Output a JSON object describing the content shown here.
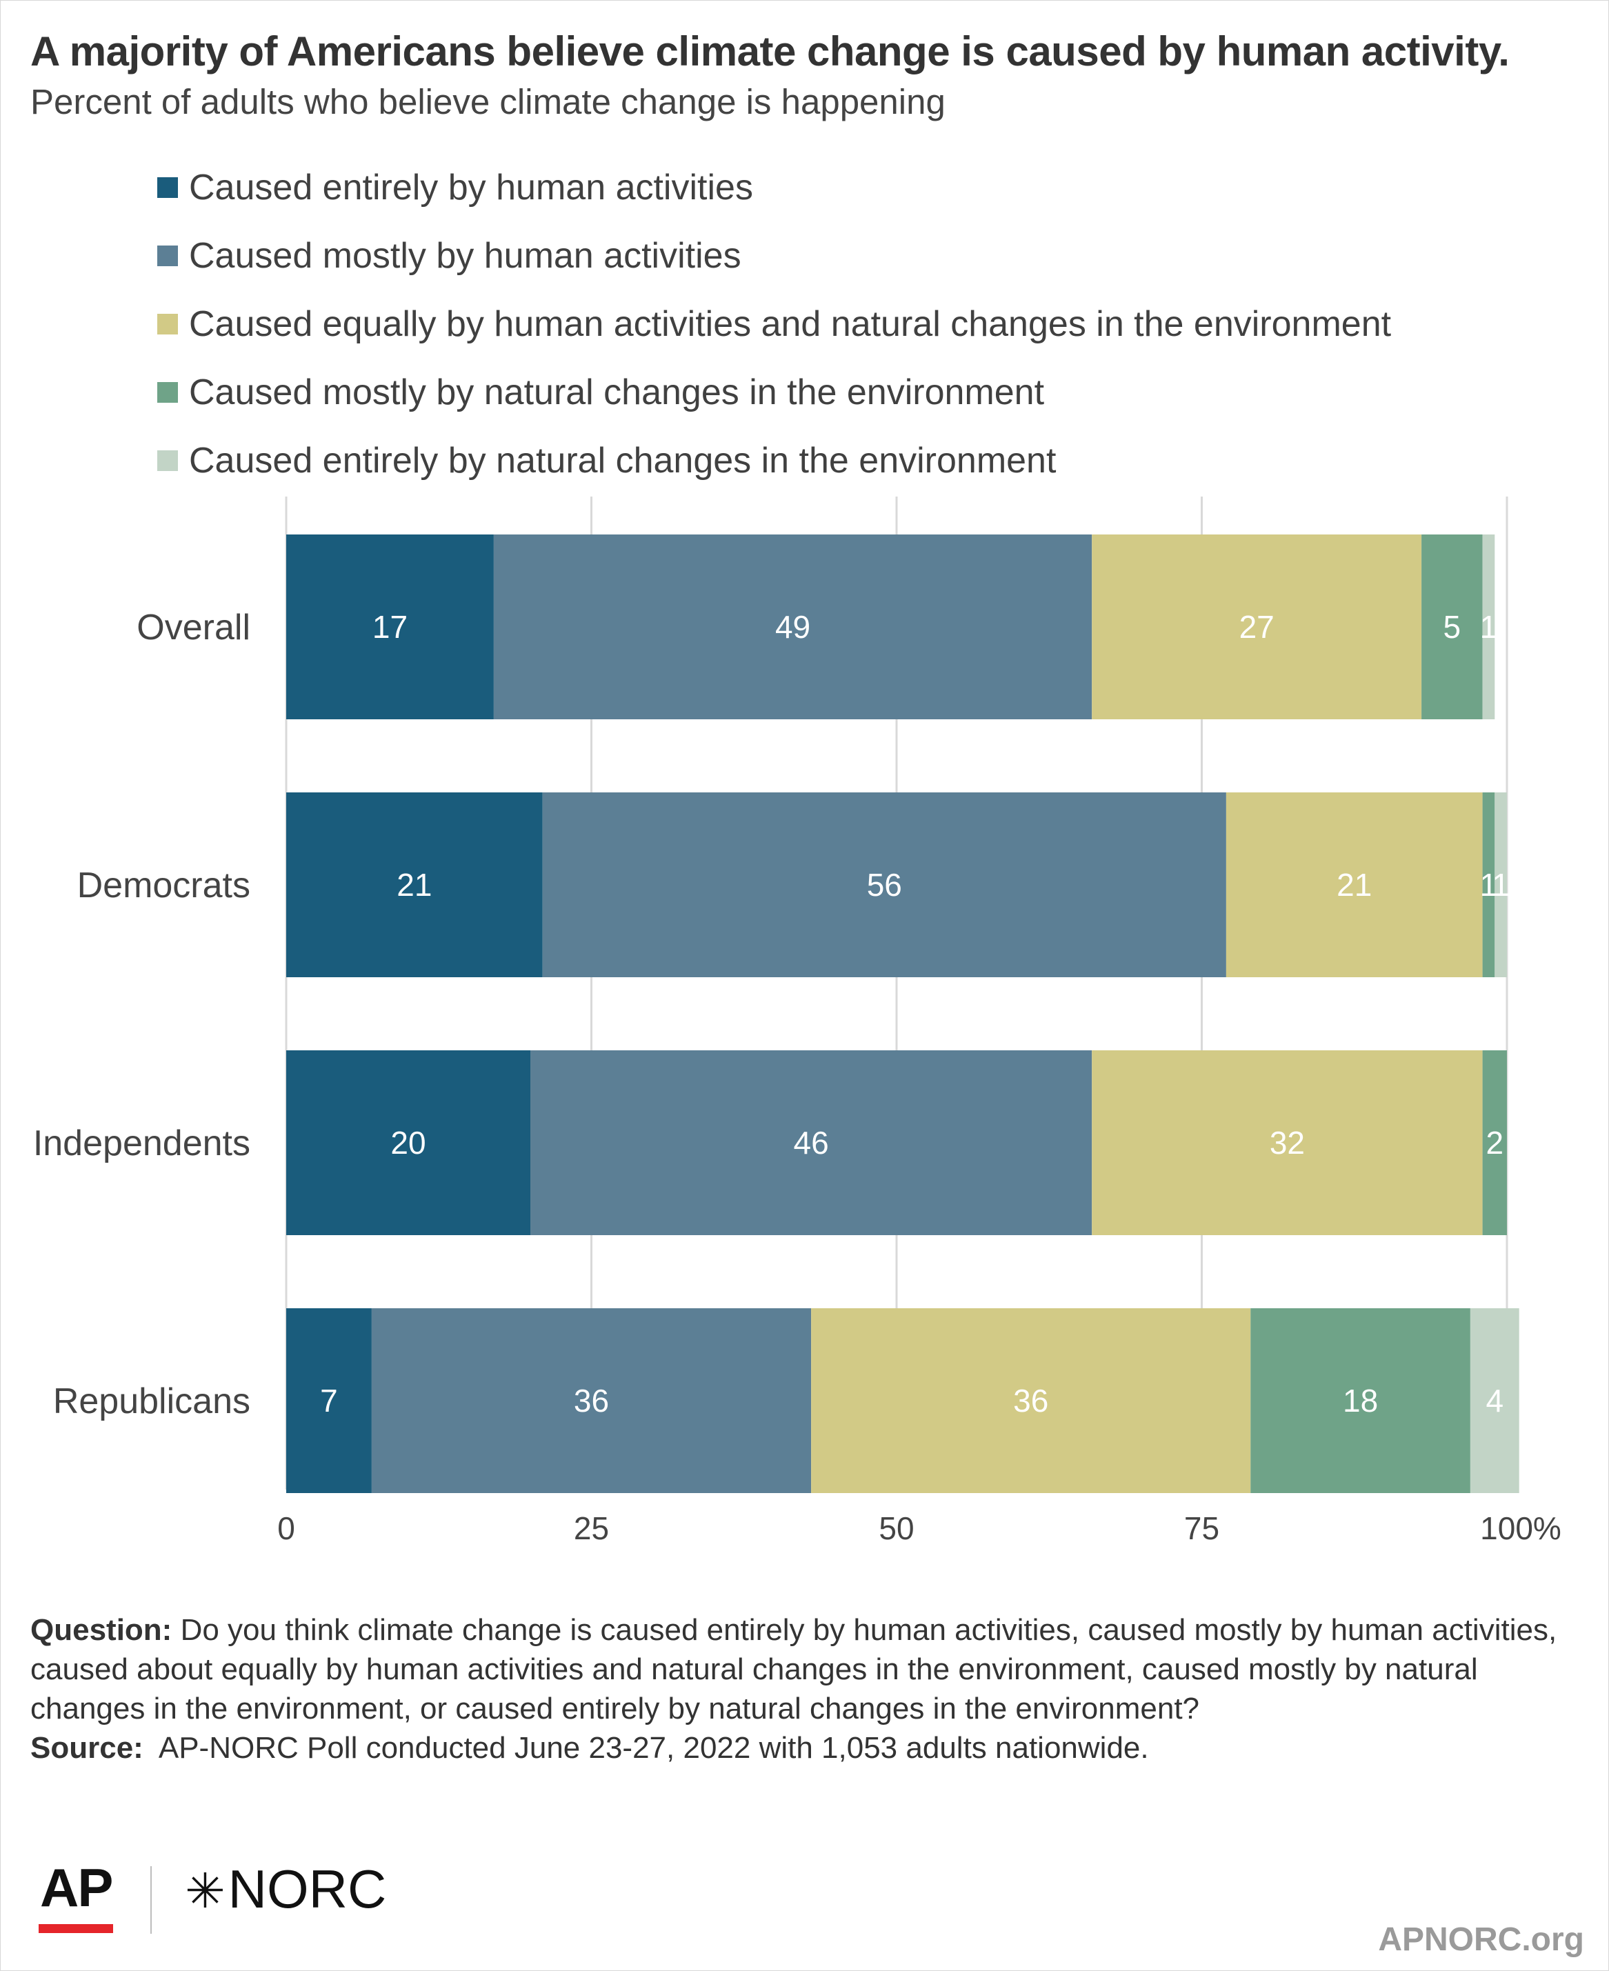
{
  "header": {
    "title": "A majority of Americans believe climate change is caused by human activity.",
    "subtitle": "Percent of adults who believe climate change is happening"
  },
  "chart_data": {
    "type": "bar",
    "orientation": "horizontal",
    "stacked": true,
    "categories": [
      "Overall",
      "Democrats",
      "Independents",
      "Republicans"
    ],
    "series": [
      {
        "name": "Caused entirely by human activities",
        "color": "#1a5c7c",
        "values": [
          17,
          21,
          20,
          7
        ]
      },
      {
        "name": "Caused mostly by human activities",
        "color": "#5c7f95",
        "values": [
          49,
          56,
          46,
          36
        ]
      },
      {
        "name": "Caused equally by human activities and natural changes in the environment",
        "color": "#d2ca86",
        "values": [
          27,
          21,
          32,
          36
        ]
      },
      {
        "name": "Caused mostly by natural changes in the environment",
        "color": "#6fa388",
        "values": [
          5,
          1,
          2,
          18
        ]
      },
      {
        "name": "Caused entirely by natural changes in the environment",
        "color": "#c2d4c6",
        "values": [
          1,
          1,
          0,
          4
        ]
      }
    ],
    "xlim": [
      0,
      100
    ],
    "ticks": [
      0,
      25,
      50,
      75,
      100
    ],
    "tick_labels": [
      "0",
      "25",
      "50",
      "75",
      "100%"
    ],
    "grid": true,
    "legend": "top-left"
  },
  "footer": {
    "question_label": "Question:",
    "question_text": "Do you think climate change is caused entirely by human activities, caused mostly by human activities, caused about equally by human activities and natural changes in the environment, caused mostly by natural changes in the environment, or caused entirely by natural changes in the environment?",
    "source_label": "Source:",
    "source_text": "AP-NORC Poll conducted June 23-27, 2022 with 1,053 adults nationwide."
  },
  "branding": {
    "ap_logo": "AP",
    "norc_logo": "NORC",
    "norc_mark": "✳",
    "site": "APNORC.org",
    "ap_red": "#e5252a"
  }
}
